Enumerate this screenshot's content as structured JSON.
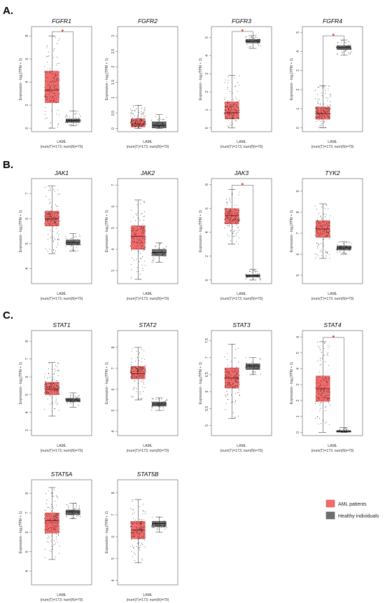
{
  "sections": [
    {
      "label": "A.",
      "panels": [
        "FGFR1",
        "FGFR2",
        "FGFR3",
        "FGFR4"
      ]
    },
    {
      "label": "B.",
      "panels": [
        "JAK1",
        "JAK2",
        "JAK3",
        "TYK2"
      ]
    },
    {
      "label": "C.",
      "panels": [
        "STAT1",
        "STAT2",
        "STAT3",
        "STAT4",
        "STAT5A",
        "STAT5B"
      ]
    }
  ],
  "legend": [
    {
      "label": "AML patients",
      "color": "#f26b6b"
    },
    {
      "label": "Healthy individuals",
      "color": "#6e6e6e"
    }
  ],
  "colors": {
    "tumor": "#f26b6b",
    "tumor_median": "#7a1f1f",
    "normal": "#6e6e6e",
    "significance": "#e0392b"
  },
  "chart_data": [
    {
      "type": "box",
      "title": "FGFR1",
      "ylabel": "Expression - log₂(TPM + 1)",
      "xlabel": "LAML",
      "xsublabel": "(num(T)=173; num(N)=70)",
      "yticks": [
        0,
        2,
        4,
        6,
        8
      ],
      "ylim": [
        -0.3,
        8.8
      ],
      "significant": true,
      "series": [
        {
          "name": "AML patients",
          "whisker_low": 0,
          "q1": 2.2,
          "median": 3.3,
          "q3": 4.95,
          "whisker_high": 8
        },
        {
          "name": "Healthy individuals",
          "whisker_low": 0.2,
          "q1": 0.5,
          "median": 0.65,
          "q3": 0.8,
          "whisker_high": 1.5
        }
      ]
    },
    {
      "type": "box",
      "title": "FGFR2",
      "ylabel": "Expression - log₂(TPM + 1)",
      "xlabel": "LAML",
      "xsublabel": "(num(T)=173; num(N)=70)",
      "yticks": [
        0,
        0.5,
        1,
        1.5,
        2,
        2.5,
        3
      ],
      "ylim": [
        -0.1,
        3.3
      ],
      "significant": false,
      "series": [
        {
          "name": "AML patients",
          "whisker_low": 0,
          "q1": 0.05,
          "median": 0.15,
          "q3": 0.32,
          "whisker_high": 0.75
        },
        {
          "name": "Healthy individuals",
          "whisker_low": 0,
          "q1": 0.02,
          "median": 0.1,
          "q3": 0.22,
          "whisker_high": 0.45
        }
      ]
    },
    {
      "type": "box",
      "title": "FGFR3",
      "ylabel": "Expression - log₂(TPM + 1)",
      "xlabel": "LAML",
      "xsublabel": "(num(T)=173; num(N)=70)",
      "yticks": [
        0,
        1,
        2,
        3,
        4,
        5
      ],
      "ylim": [
        -0.2,
        5.6
      ],
      "significant": true,
      "series": [
        {
          "name": "AML patients",
          "whisker_low": 0,
          "q1": 0.5,
          "median": 0.85,
          "q3": 1.45,
          "whisker_high": 2.9
        },
        {
          "name": "Healthy individuals",
          "whisker_low": 4.4,
          "q1": 4.7,
          "median": 4.8,
          "q3": 4.9,
          "whisker_high": 5.1
        }
      ]
    },
    {
      "type": "box",
      "title": "FGFR4",
      "ylabel": "Expression - log₂(TPM + 1)",
      "xlabel": "LAML",
      "xsublabel": "(num(T)=173; num(N)=70)",
      "yticks": [
        0,
        1,
        2,
        3,
        4,
        5
      ],
      "ylim": [
        -0.2,
        5.3
      ],
      "significant": true,
      "series": [
        {
          "name": "AML patients",
          "whisker_low": 0,
          "q1": 0.45,
          "median": 0.75,
          "q3": 1.1,
          "whisker_high": 2.2
        },
        {
          "name": "Healthy individuals",
          "whisker_low": 3.8,
          "q1": 4.1,
          "median": 4.2,
          "q3": 4.3,
          "whisker_high": 4.6
        }
      ]
    },
    {
      "type": "box",
      "title": "JAK1",
      "ylabel": "Expression - log₂(TPM + 1)",
      "xlabel": "LAML",
      "xsublabel": "(num(T)=173; num(N)=70)",
      "yticks": [
        4,
        5,
        6,
        7
      ],
      "ylim": [
        3.4,
        7.6
      ],
      "significant": false,
      "series": [
        {
          "name": "AML patients",
          "whisker_low": 4.6,
          "q1": 5.7,
          "median": 6.0,
          "q3": 6.3,
          "whisker_high": 7.3
        },
        {
          "name": "Healthy individuals",
          "whisker_low": 4.7,
          "q1": 4.95,
          "median": 5.05,
          "q3": 5.15,
          "whisker_high": 5.4
        }
      ]
    },
    {
      "type": "box",
      "title": "JAK2",
      "ylabel": "Expression - log₂(TPM + 1)",
      "xlabel": "LAML",
      "xsublabel": "(num(T)=173; num(N)=70)",
      "yticks": [
        3,
        4,
        5,
        6,
        7
      ],
      "ylim": [
        2.4,
        7.3
      ],
      "significant": false,
      "series": [
        {
          "name": "AML patients",
          "whisker_low": 2.6,
          "q1": 4.0,
          "median": 4.6,
          "q3": 5.1,
          "whisker_high": 6.3
        },
        {
          "name": "Healthy individuals",
          "whisker_low": 3.4,
          "q1": 3.7,
          "median": 3.85,
          "q3": 4.0,
          "whisker_high": 4.3
        }
      ]
    },
    {
      "type": "box",
      "title": "JAK3",
      "ylabel": "Expression - log₂(TPM + 1)",
      "xlabel": "LAML",
      "xsublabel": "(num(T)=173; num(N)=70)",
      "yticks": [
        0,
        2,
        4,
        6,
        8
      ],
      "ylim": [
        -0.3,
        8.5
      ],
      "significant": true,
      "series": [
        {
          "name": "AML patients",
          "whisker_low": 3.0,
          "q1": 4.7,
          "median": 5.4,
          "q3": 6.0,
          "whisker_high": 7.6
        },
        {
          "name": "Healthy individuals",
          "whisker_low": 0,
          "q1": 0.25,
          "median": 0.35,
          "q3": 0.45,
          "whisker_high": 0.9
        }
      ]
    },
    {
      "type": "box",
      "title": "TYK2",
      "ylabel": "Expression - log₂(TPM + 1)",
      "xlabel": "LAML",
      "xsublabel": "(num(T)=173; num(N)=70)",
      "yticks": [
        5,
        6,
        7,
        8,
        9
      ],
      "ylim": [
        4.6,
        9.6
      ],
      "significant": false,
      "series": [
        {
          "name": "AML patients",
          "whisker_low": 5.8,
          "q1": 6.8,
          "median": 7.2,
          "q3": 7.6,
          "whisker_high": 8.4
        },
        {
          "name": "Healthy individuals",
          "whisker_low": 6.0,
          "q1": 6.2,
          "median": 6.3,
          "q3": 6.4,
          "whisker_high": 6.6
        }
      ]
    },
    {
      "type": "box",
      "title": "STAT1",
      "ylabel": "Expression - log₂(TPM + 1)",
      "xlabel": "LAML",
      "xsublabel": "(num(T)=173; num(N)=70)",
      "yticks": [
        3,
        4,
        5,
        6,
        7,
        8
      ],
      "ylim": [
        2.7,
        8.6
      ],
      "significant": false,
      "series": [
        {
          "name": "AML patients",
          "whisker_low": 3.8,
          "q1": 5.0,
          "median": 5.3,
          "q3": 5.7,
          "whisker_high": 6.8
        },
        {
          "name": "Healthy individuals",
          "whisker_low": 4.3,
          "q1": 4.6,
          "median": 4.7,
          "q3": 4.8,
          "whisker_high": 5.1
        }
      ]
    },
    {
      "type": "box",
      "title": "STAT2",
      "ylabel": "Expression - log₂(TPM + 1)",
      "xlabel": "LAML",
      "xsublabel": "(num(T)=173; num(N)=70)",
      "yticks": [
        4,
        5,
        6,
        7,
        8
      ],
      "ylim": [
        3.8,
        8.8
      ],
      "significant": false,
      "series": [
        {
          "name": "AML patients",
          "whisker_low": 5.5,
          "q1": 6.5,
          "median": 6.75,
          "q3": 7.1,
          "whisker_high": 8.0
        },
        {
          "name": "Healthy individuals",
          "whisker_low": 5.0,
          "q1": 5.2,
          "median": 5.3,
          "q3": 5.4,
          "whisker_high": 5.6
        }
      ]
    },
    {
      "type": "box",
      "title": "STAT3",
      "ylabel": "Expression - log₂(TPM + 1)",
      "xlabel": "LAML",
      "xsublabel": "(num(T)=173; num(N)=70)",
      "yticks": [
        5.0,
        5.5,
        6.0,
        6.5,
        7.0,
        7.5
      ],
      "ylim": [
        4.7,
        7.8
      ],
      "significant": false,
      "series": [
        {
          "name": "AML patients",
          "whisker_low": 5.2,
          "q1": 6.1,
          "median": 6.4,
          "q3": 6.7,
          "whisker_high": 7.4
        },
        {
          "name": "Healthy individuals",
          "whisker_low": 6.5,
          "q1": 6.65,
          "median": 6.75,
          "q3": 6.82,
          "whisker_high": 7.0
        }
      ]
    },
    {
      "type": "box",
      "title": "STAT4",
      "ylabel": "Expression - log₂(TPM + 1)",
      "xlabel": "LAML",
      "xsublabel": "(num(T)=173; num(N)=70)",
      "yticks": [
        0,
        1,
        2,
        3,
        4,
        5,
        6
      ],
      "ylim": [
        -0.2,
        6.4
      ],
      "significant": true,
      "series": [
        {
          "name": "AML patients",
          "whisker_low": 0,
          "q1": 1.95,
          "median": 2.75,
          "q3": 3.55,
          "whisker_high": 5.7
        },
        {
          "name": "Healthy individuals",
          "whisker_low": 0,
          "q1": 0.02,
          "median": 0.05,
          "q3": 0.12,
          "whisker_high": 0.3
        }
      ]
    },
    {
      "type": "box",
      "title": "STAT5A",
      "ylabel": "Expression - log₂(TPM + 1)",
      "xlabel": "LAML",
      "xsublabel": "(num(T)=173; num(N)=70)",
      "yticks": [
        4,
        5,
        6,
        7,
        8
      ],
      "ylim": [
        3.3,
        8.7
      ],
      "significant": false,
      "series": [
        {
          "name": "AML patients",
          "whisker_low": 4.6,
          "q1": 5.95,
          "median": 6.6,
          "q3": 7.0,
          "whisker_high": 8.3
        },
        {
          "name": "Healthy individuals",
          "whisker_low": 6.7,
          "q1": 6.9,
          "median": 7.05,
          "q3": 7.15,
          "whisker_high": 7.5
        }
      ]
    },
    {
      "type": "box",
      "title": "STAT5B",
      "ylabel": "Expression - log₂(TPM + 1)",
      "xlabel": "LAML",
      "xsublabel": "(num(T)=173; num(N)=70)",
      "yticks": [
        4,
        5,
        6,
        7,
        8
      ],
      "ylim": [
        3.8,
        8.6
      ],
      "significant": false,
      "series": [
        {
          "name": "AML patients",
          "whisker_low": 4.8,
          "q1": 5.9,
          "median": 6.3,
          "q3": 6.7,
          "whisker_high": 7.7
        },
        {
          "name": "Healthy individuals",
          "whisker_low": 6.2,
          "q1": 6.45,
          "median": 6.6,
          "q3": 6.7,
          "whisker_high": 6.9
        }
      ]
    }
  ]
}
